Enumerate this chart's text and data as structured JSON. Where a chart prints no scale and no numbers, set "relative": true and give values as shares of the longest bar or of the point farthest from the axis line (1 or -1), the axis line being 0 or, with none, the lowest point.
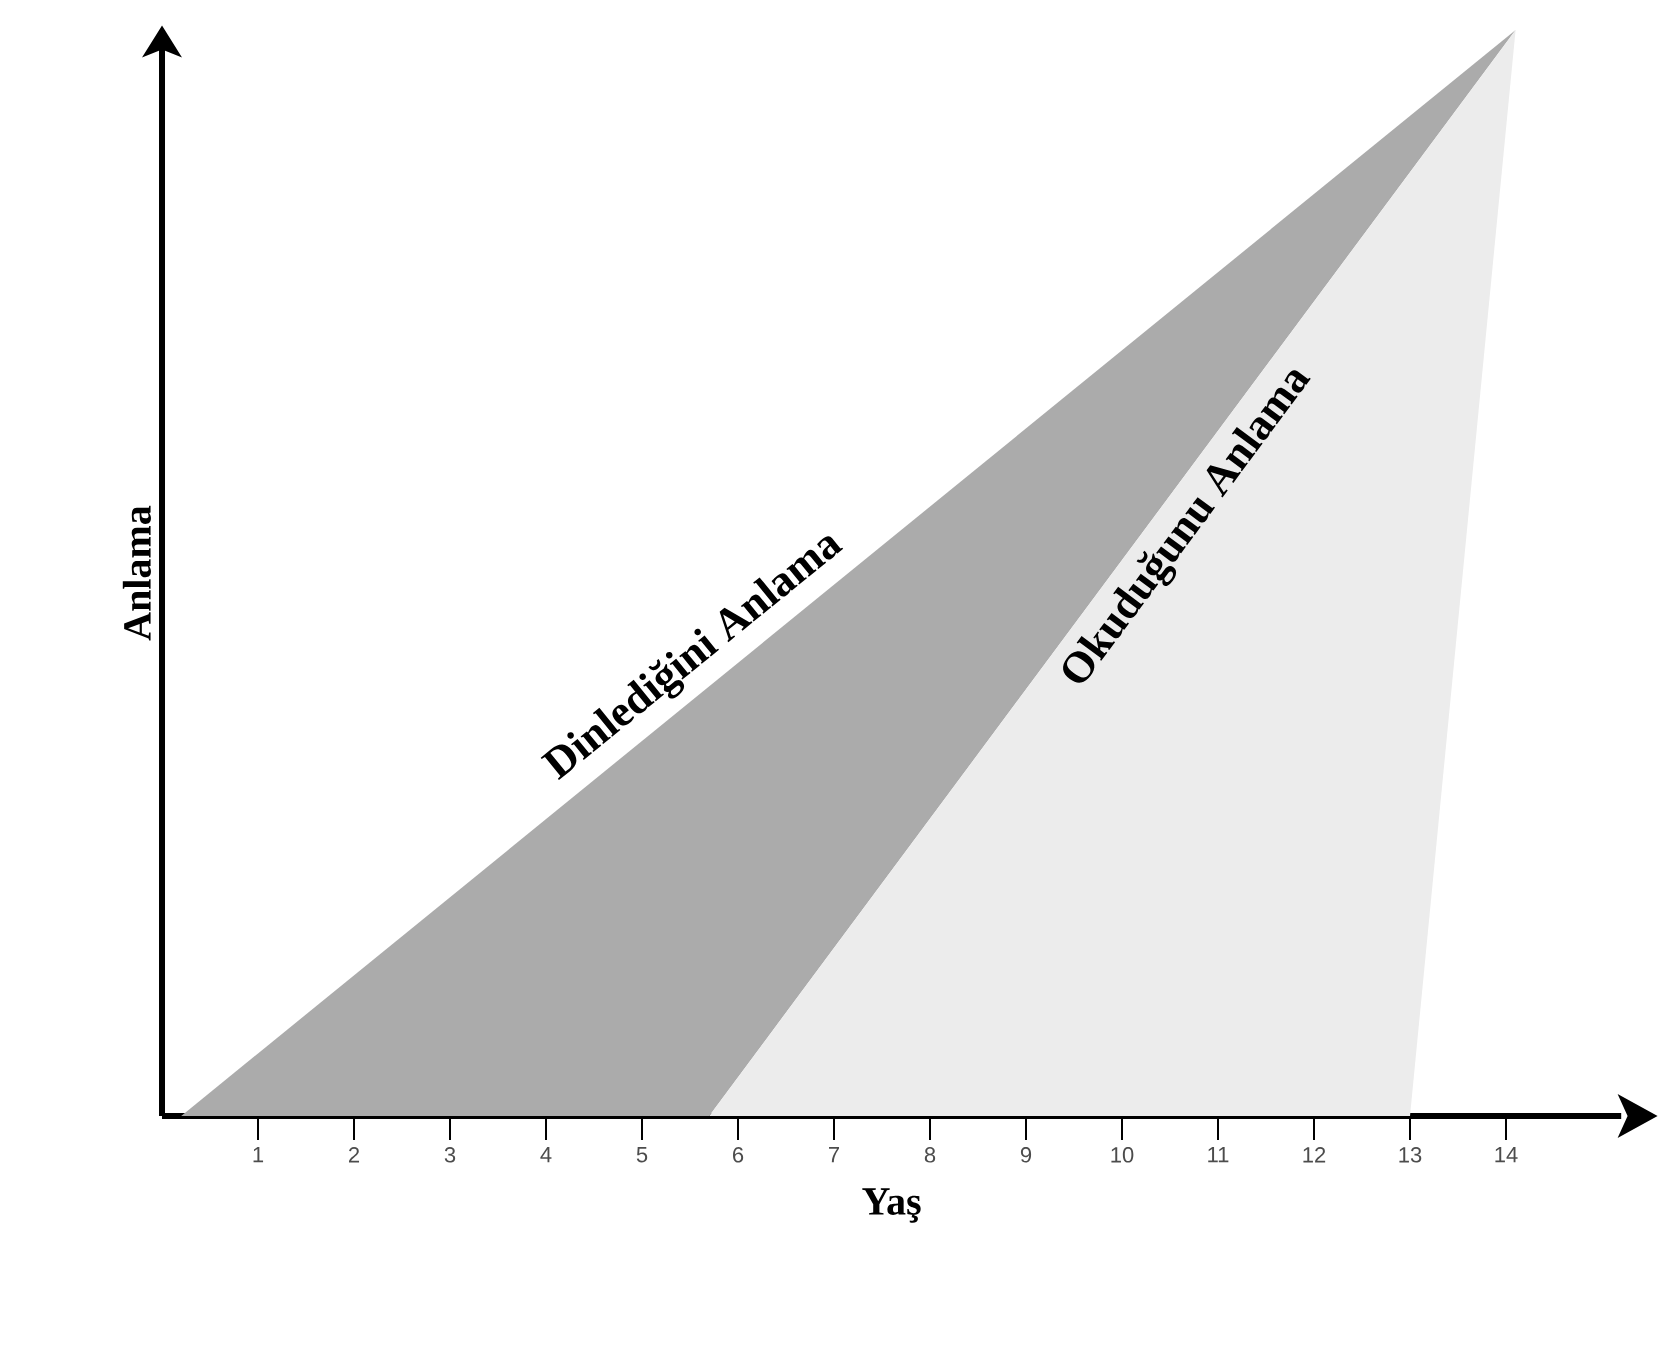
{
  "chart_data": {
    "type": "area",
    "relative": true,
    "xlabel": "Yaş",
    "ylabel": "Anlama",
    "xlim": [
      0,
      15.2
    ],
    "xticks": [
      1,
      2,
      3,
      4,
      5,
      6,
      7,
      8,
      9,
      10,
      11,
      12,
      13,
      14
    ],
    "series": [
      {
        "name": "Dinlediğini Anlama",
        "color": "#ababab",
        "x": [
          0.2,
          14.1,
          5.7
        ],
        "values": [
          0,
          1,
          0
        ]
      },
      {
        "name": "Okuduğunu Anlama",
        "color": "#ececec",
        "x": [
          5.7,
          14.1,
          13
        ],
        "values": [
          0,
          1,
          0
        ]
      }
    ]
  }
}
